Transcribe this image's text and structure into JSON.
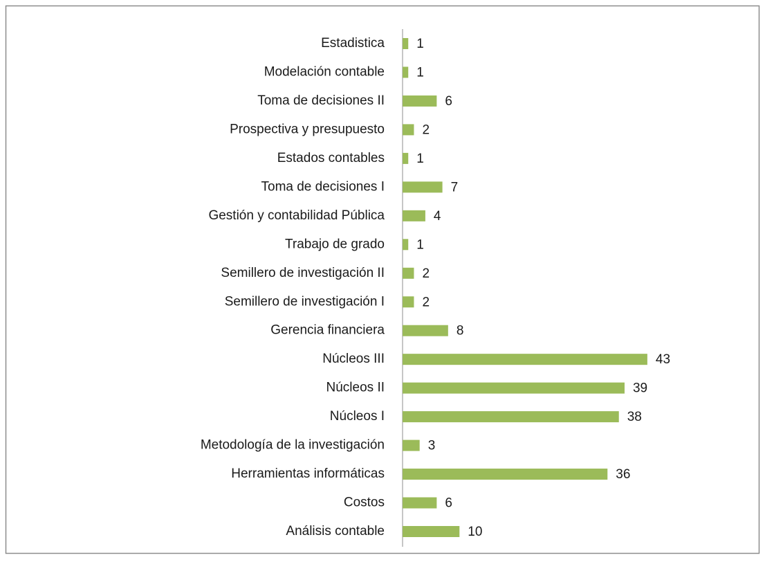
{
  "chart_data": {
    "type": "bar",
    "orientation": "horizontal",
    "categories": [
      "Estadistica",
      "Modelación contable",
      "Toma de decisiones II",
      "Prospectiva y presupuesto",
      "Estados contables",
      "Toma de decisiones I",
      "Gestión y contabilidad Pública",
      "Trabajo de grado",
      "Semillero de investigación II",
      "Semillero de investigación I",
      "Gerencia financiera",
      "Núcleos III",
      "Núcleos II",
      "Núcleos I",
      "Metodología de la investigación",
      "Herramientas informáticas",
      "Costos",
      "Análisis contable"
    ],
    "values": [
      1,
      1,
      6,
      2,
      1,
      7,
      4,
      1,
      2,
      2,
      8,
      43,
      39,
      38,
      3,
      36,
      6,
      10
    ],
    "color": "#9bbb59"
  }
}
